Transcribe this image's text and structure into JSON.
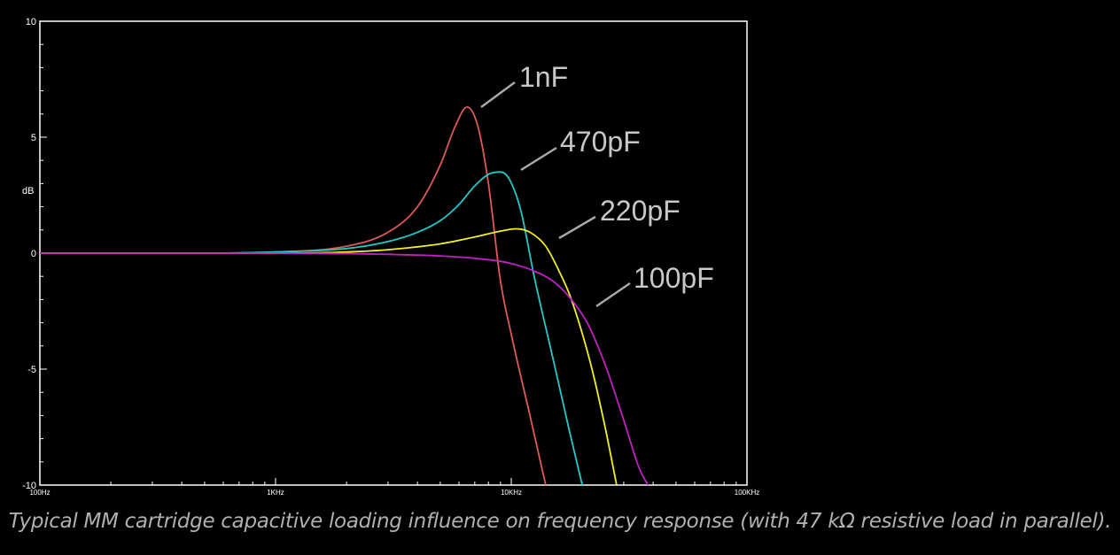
{
  "chart_data": {
    "type": "line",
    "title": "",
    "xlabel": "",
    "ylabel": "dB",
    "xscale": "log",
    "xlim": [
      100,
      100000
    ],
    "ylim": [
      -10,
      10
    ],
    "grid": false,
    "background": "#000000",
    "x_tick_labels": [
      {
        "value": 100,
        "label": "100Hz"
      },
      {
        "value": 1000,
        "label": "1KHz"
      },
      {
        "value": 10000,
        "label": "10KHz"
      },
      {
        "value": 100000,
        "label": "100KHz"
      }
    ],
    "y_tick_labels": [
      {
        "value": 10,
        "label": "10"
      },
      {
        "value": 5,
        "label": "5"
      },
      {
        "value": 0,
        "label": "0"
      },
      {
        "value": -5,
        "label": "-5"
      },
      {
        "value": -10,
        "label": "-10"
      }
    ],
    "series": [
      {
        "name": "1nF",
        "color": "#e05858",
        "x": [
          100,
          500,
          1000,
          2000,
          3000,
          4000,
          5000,
          5800,
          6500,
          7200,
          8000,
          9000,
          10000,
          12000,
          14000
        ],
        "y": [
          0,
          0,
          0.05,
          0.3,
          0.9,
          2.0,
          3.8,
          5.5,
          6.3,
          5.5,
          3.0,
          -1.2,
          -3.5,
          -7.0,
          -10
        ]
      },
      {
        "name": "470pF",
        "color": "#22c8c8",
        "x": [
          100,
          500,
          1000,
          2000,
          3000,
          4000,
          5000,
          6000,
          7000,
          8000,
          9000,
          9800,
          11000,
          12500,
          15000,
          17500,
          20000
        ],
        "y": [
          0,
          0,
          0.05,
          0.2,
          0.5,
          0.9,
          1.4,
          2.1,
          2.9,
          3.4,
          3.5,
          3.2,
          1.8,
          -1.0,
          -4.5,
          -7.5,
          -10
        ]
      },
      {
        "name": "220pF",
        "color": "#f0f020",
        "x": [
          100,
          500,
          1000,
          2000,
          3000,
          5000,
          7000,
          9000,
          10500,
          12000,
          14000,
          16000,
          18000,
          22000,
          25000,
          28000
        ],
        "y": [
          0,
          0,
          0,
          0.05,
          0.15,
          0.4,
          0.7,
          0.95,
          1.05,
          0.9,
          0.3,
          -0.8,
          -2.0,
          -5.0,
          -7.5,
          -10
        ]
      },
      {
        "name": "100pF",
        "color": "#c020c0",
        "x": [
          100,
          500,
          1000,
          2000,
          3000,
          5000,
          7000,
          9000,
          10000,
          12000,
          15000,
          18000,
          21000,
          25000,
          30000,
          35000,
          38000
        ],
        "y": [
          0,
          0,
          0,
          -0.02,
          -0.05,
          -0.12,
          -0.22,
          -0.35,
          -0.45,
          -0.7,
          -1.2,
          -2.0,
          -3.0,
          -4.8,
          -7.2,
          -9.3,
          -10
        ]
      }
    ]
  },
  "caption": "Typical MM cartridge capacitive loading influence on frequency response (with 47 kΩ resistive load in parallel)."
}
